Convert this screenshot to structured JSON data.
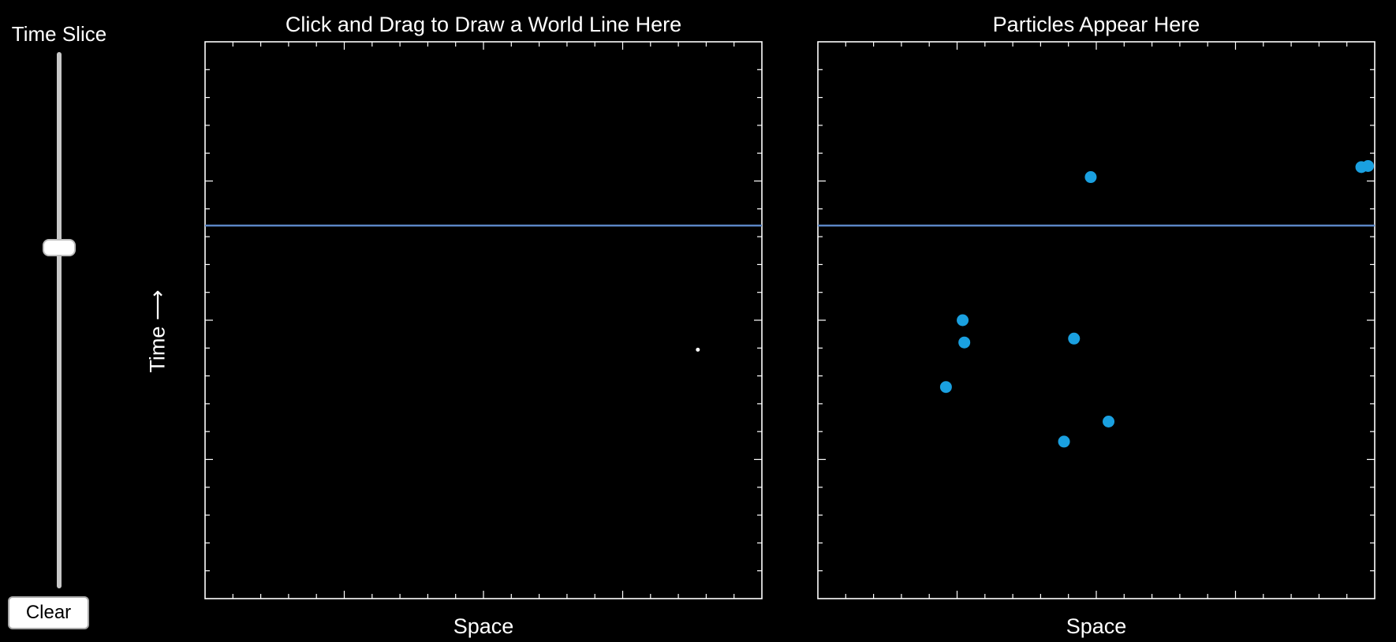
{
  "slider": {
    "title": "Time Slice",
    "value_fraction": 0.635
  },
  "clear_button": {
    "label": "Clear"
  },
  "left_plot": {
    "title": "Click and Drag to Draw a World Line Here",
    "xlabel": "Space",
    "ylabel": "Time ⟶"
  },
  "right_plot": {
    "title": "Particles Appear Here",
    "xlabel": "Space"
  },
  "colors": {
    "background": "#000000",
    "axis": "#ffffff",
    "time_line": "#5b86c5",
    "particle": "#1aa0e0",
    "drawn_point": "#ffffff"
  },
  "chart_data": [
    {
      "type": "scatter",
      "title": "Click and Drag to Draw a World Line Here",
      "xlabel": "Space",
      "ylabel": "Time ⟶",
      "xlim": [
        0,
        1
      ],
      "ylim": [
        0,
        1
      ],
      "time_slice": 0.67,
      "points": [
        {
          "x": 0.885,
          "y": 0.447
        }
      ]
    },
    {
      "type": "scatter",
      "title": "Particles Appear Here",
      "xlabel": "Space",
      "xlim": [
        0,
        1
      ],
      "ylim": [
        0,
        1
      ],
      "time_slice": 0.67,
      "points": [
        {
          "x": 0.49,
          "y": 0.757
        },
        {
          "x": 0.976,
          "y": 0.775
        },
        {
          "x": 0.988,
          "y": 0.777
        },
        {
          "x": 0.26,
          "y": 0.5
        },
        {
          "x": 0.263,
          "y": 0.46
        },
        {
          "x": 0.46,
          "y": 0.467
        },
        {
          "x": 0.23,
          "y": 0.38
        },
        {
          "x": 0.522,
          "y": 0.318
        },
        {
          "x": 0.442,
          "y": 0.282
        }
      ]
    }
  ]
}
